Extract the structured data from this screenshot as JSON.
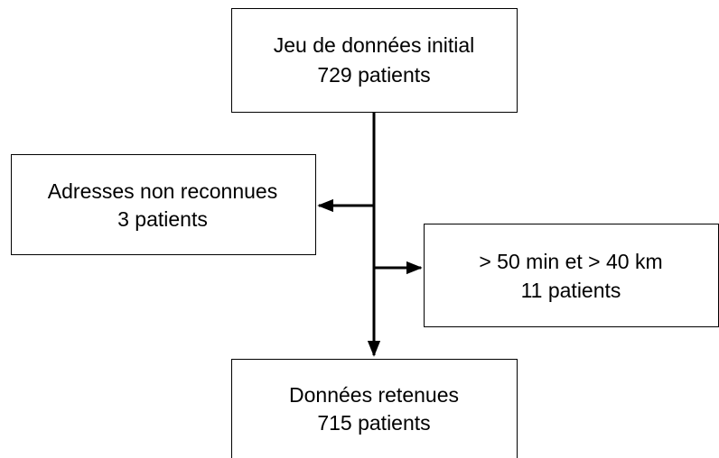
{
  "nodes": [
    {
      "lines": [
        "Jeu de données initial",
        "729 patients"
      ]
    },
    {
      "lines": [
        "Adresses non reconnues",
        "3 patients"
      ]
    },
    {
      "lines": [
        "> 50 min et > 40 km",
        "11 patients"
      ]
    },
    {
      "lines": [
        "Données retenues",
        "715 patients"
      ]
    }
  ]
}
